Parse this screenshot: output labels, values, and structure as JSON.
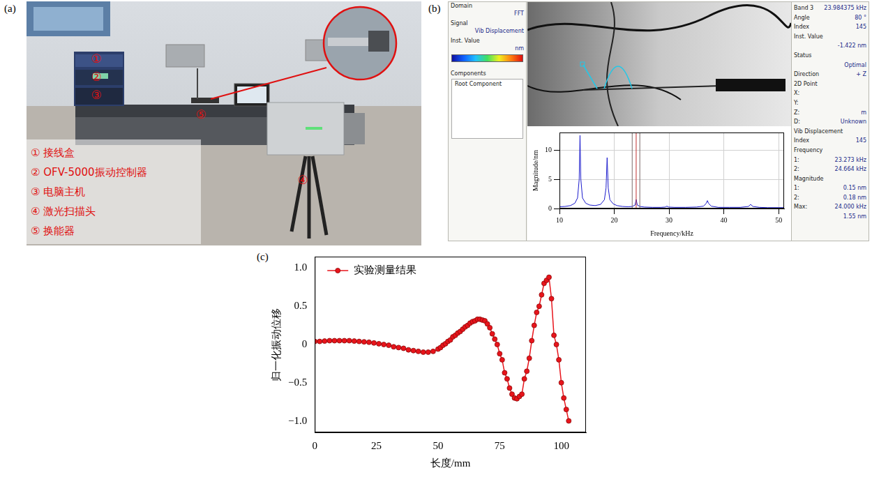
{
  "photo": {
    "letter": "(a)",
    "markers": [
      "①",
      "②",
      "③",
      "④",
      "⑤"
    ],
    "legend_items": [
      "① 接线盒",
      "② OFV-5000振动控制器",
      "③ 电脑主机",
      "④ 激光扫描头",
      "⑤ 换能器"
    ]
  },
  "screenshot": {
    "letter": "(b)",
    "left_pane": [
      {
        "label": "Domain",
        "value": "FFT"
      },
      {
        "label": "Signal",
        "value": "Vib Displacement"
      },
      {
        "label": "Inst. Value",
        "value": "nm"
      }
    ],
    "components_title": "Components",
    "components_item": "Root Component",
    "right_pane": [
      {
        "label": "Band 3",
        "value": "23.984375 kHz"
      },
      {
        "label": "Angle",
        "value": "80 °"
      },
      {
        "label": "Index",
        "value": "145"
      },
      {
        "label": "Inst. Value"
      },
      {
        "value": "-1.422 nm"
      },
      {
        "label": "Status"
      },
      {
        "value": "Optimal"
      },
      {
        "label": "Direction",
        "value": "+ Z"
      },
      {
        "label": "2D Point"
      },
      {
        "label": "X:"
      },
      {
        "label": "Y:"
      },
      {
        "label": "Z:",
        "value": "m"
      },
      {
        "label": "D:",
        "value": "Unknown"
      },
      {
        "label": "Vib Displacement"
      },
      {
        "label": "Index",
        "value": "145"
      },
      {
        "label": "Frequency"
      },
      {
        "label": "1:",
        "value": "23.273 kHz"
      },
      {
        "label": "2:",
        "value": "24.664 kHz"
      },
      {
        "label": "Magnitude"
      },
      {
        "label": "1:",
        "value": "0.15 nm"
      },
      {
        "label": "2:",
        "value": "0.18 nm"
      },
      {
        "label": "Max:",
        "value": "24.000 kHz"
      },
      {
        "value": "1.55 nm"
      }
    ]
  },
  "chart_data": [
    {
      "type": "line",
      "panel": "(b)",
      "x_label": "Frequency/kHz",
      "y_label": "Magnitude/nm",
      "x": [
        10,
        11,
        12,
        12.8,
        13.3,
        13.6,
        13.75,
        13.9,
        14.2,
        14.8,
        15.5,
        16.5,
        17.5,
        18.2,
        18.5,
        18.7,
        18.9,
        19.2,
        19.8,
        20.5,
        21.5,
        22.5,
        23.3,
        23.8,
        24.0,
        24.2,
        24.7,
        25.5,
        27,
        28.5,
        29.3,
        29.6,
        29.9,
        31,
        33,
        35,
        36.3,
        36.8,
        37.0,
        37.2,
        37.7,
        39,
        41,
        43,
        44.5,
        44.9,
        45.3,
        46.5,
        48,
        50,
        51
      ],
      "values": [
        0.3,
        0.35,
        0.5,
        0.9,
        1.8,
        5,
        12.5,
        5,
        1.8,
        0.9,
        0.6,
        0.5,
        0.7,
        1.5,
        3.5,
        8.7,
        3.5,
        1.5,
        0.8,
        0.5,
        0.35,
        0.3,
        0.35,
        0.6,
        1.55,
        0.6,
        0.35,
        0.25,
        0.2,
        0.2,
        0.25,
        0.4,
        0.25,
        0.2,
        0.2,
        0.25,
        0.4,
        0.9,
        1.35,
        0.9,
        0.4,
        0.2,
        0.2,
        0.2,
        0.35,
        0.7,
        0.35,
        0.2,
        0.15,
        0.15,
        0.15
      ],
      "color": "#1a1acc",
      "cursor_lines": [
        23.273,
        24.0,
        24.664
      ],
      "xlim": [
        10,
        51
      ],
      "xticks": [
        10,
        20,
        30,
        40,
        50
      ],
      "ylim": [
        0,
        13
      ],
      "yticks": [
        0,
        5,
        10
      ],
      "grid": true
    },
    {
      "type": "line",
      "panel": "(c)",
      "x_label": "长度/mm",
      "y_label": "归一化振动位移",
      "x": [
        0,
        2,
        4,
        6,
        8,
        10,
        12,
        14,
        16,
        18,
        20,
        22,
        24,
        26,
        28,
        30,
        32,
        34,
        36,
        38,
        40,
        42,
        44,
        46,
        48,
        50,
        51,
        52,
        53,
        54,
        55,
        56,
        57,
        58,
        59,
        60,
        61,
        62,
        63,
        64,
        65,
        66,
        67,
        68,
        69,
        70,
        71,
        72,
        73,
        74,
        75,
        76,
        77,
        78,
        79,
        80,
        81,
        82,
        83,
        84,
        85,
        86,
        87,
        88,
        89,
        90,
        91,
        92,
        93,
        94,
        95,
        96,
        97,
        98,
        99,
        100,
        101,
        102,
        103
      ],
      "series": [
        {
          "name": "实验测量结果",
          "color": "#e8141b",
          "marker": "circle",
          "line_style": "solid",
          "values": [
            0.04,
            0.04,
            0.045,
            0.05,
            0.05,
            0.05,
            0.05,
            0.05,
            0.045,
            0.04,
            0.035,
            0.03,
            0.02,
            0.01,
            0,
            -0.01,
            -0.03,
            -0.04,
            -0.05,
            -0.07,
            -0.08,
            -0.09,
            -0.1,
            -0.1,
            -0.09,
            -0.06,
            -0.04,
            -0.01,
            0.01,
            0.04,
            0.06,
            0.1,
            0.12,
            0.15,
            0.17,
            0.2,
            0.23,
            0.25,
            0.28,
            0.3,
            0.31,
            0.33,
            0.33,
            0.32,
            0.31,
            0.27,
            0.22,
            0.14,
            0.07,
            0,
            -0.12,
            -0.2,
            -0.37,
            -0.45,
            -0.57,
            -0.65,
            -0.7,
            -0.71,
            -0.68,
            -0.65,
            -0.45,
            -0.35,
            -0.18,
            0.05,
            0.25,
            0.42,
            0.5,
            0.65,
            0.8,
            0.84,
            0.88,
            0.6,
            0.12,
            0,
            -0.2,
            -0.5,
            -0.7,
            -0.85,
            -1.0
          ]
        }
      ],
      "legend": "upper left",
      "xlim": [
        0,
        110
      ],
      "xticks": [
        0,
        25,
        50,
        75,
        100
      ],
      "ylim": [
        -1.15,
        1.15
      ],
      "yticks": [
        {
          "value": 1,
          "label": "1.0"
        },
        0.5,
        0,
        {
          "value": -0.5,
          "label": "−0.5"
        },
        {
          "value": -1,
          "label": "−1.0"
        }
      ],
      "grid": false
    }
  ]
}
